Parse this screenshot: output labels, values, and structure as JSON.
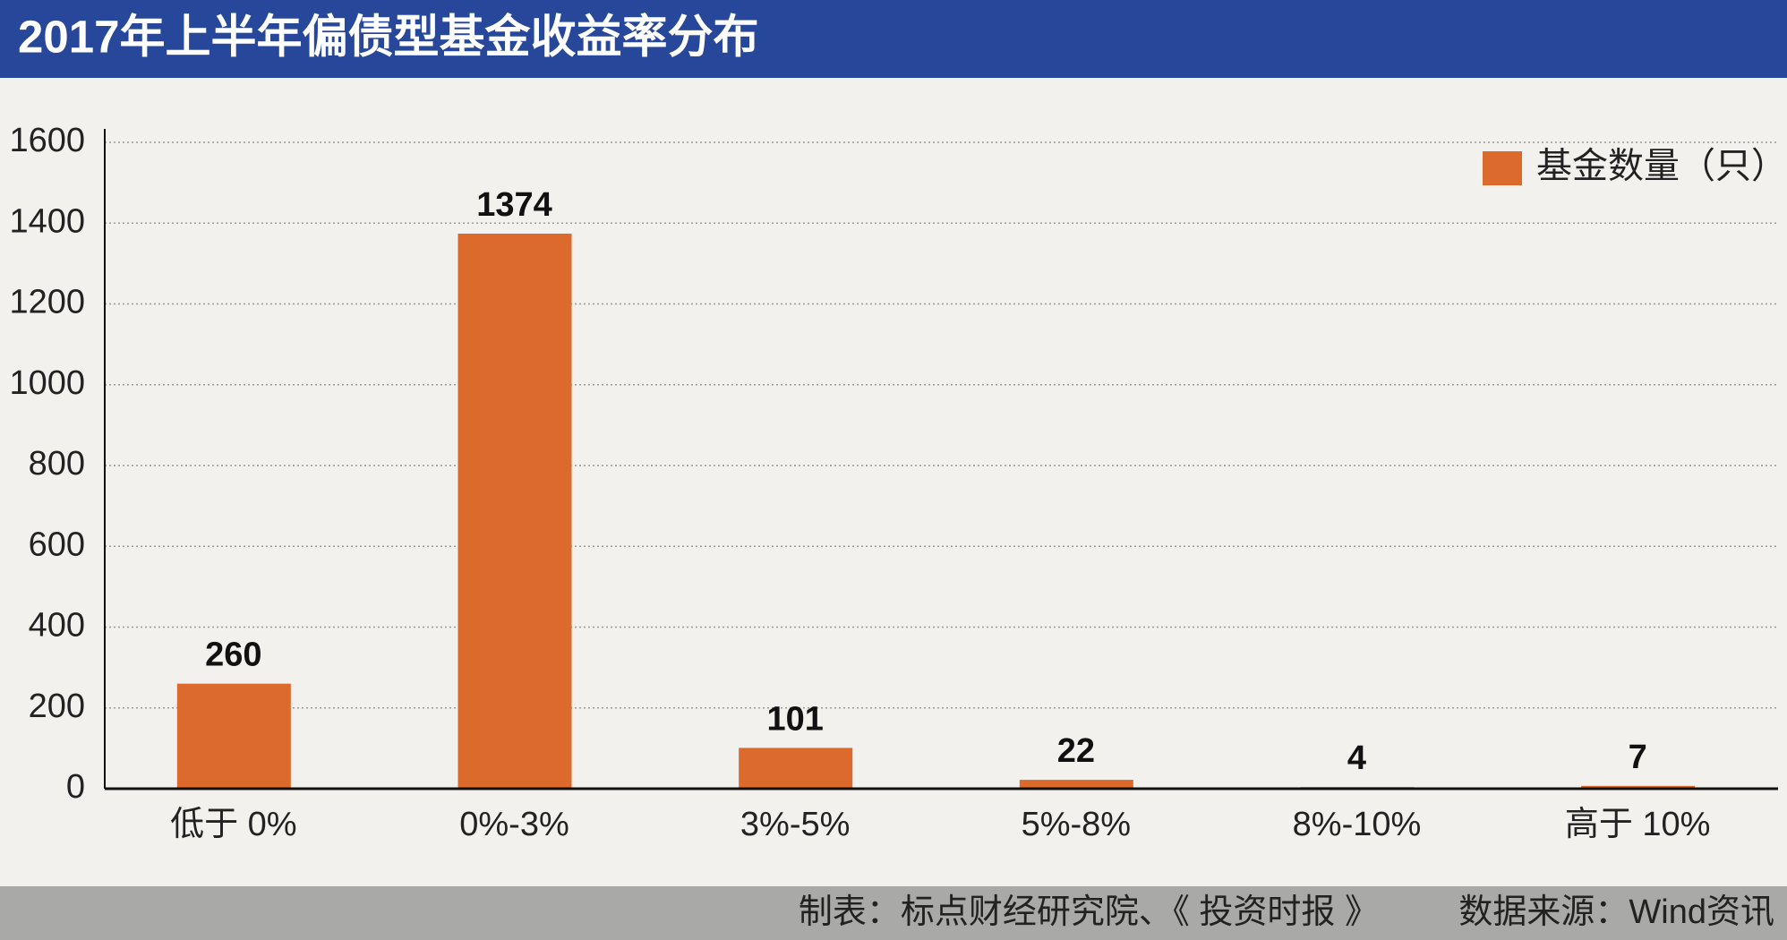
{
  "chart_data": {
    "type": "bar",
    "title": "2017年上半年偏债型基金收益率分布",
    "categories": [
      "低于 0%",
      "0%-3%",
      "3%-5%",
      "5%-8%",
      "8%-10%",
      "高于 10%"
    ],
    "series": [
      {
        "name": "基金数量（只）",
        "color": "#dc6a2c",
        "values": [
          260,
          1374,
          101,
          22,
          4,
          7
        ]
      }
    ],
    "ylim": [
      0,
      1600
    ],
    "yticks": [
      0,
      200,
      400,
      600,
      800,
      1000,
      1200,
      1400,
      1600
    ],
    "grid": true,
    "legend": "top-right",
    "notes": [
      "制表：标点财经研究院、《 投资时报 》",
      "数据来源：Wind资讯"
    ]
  }
}
